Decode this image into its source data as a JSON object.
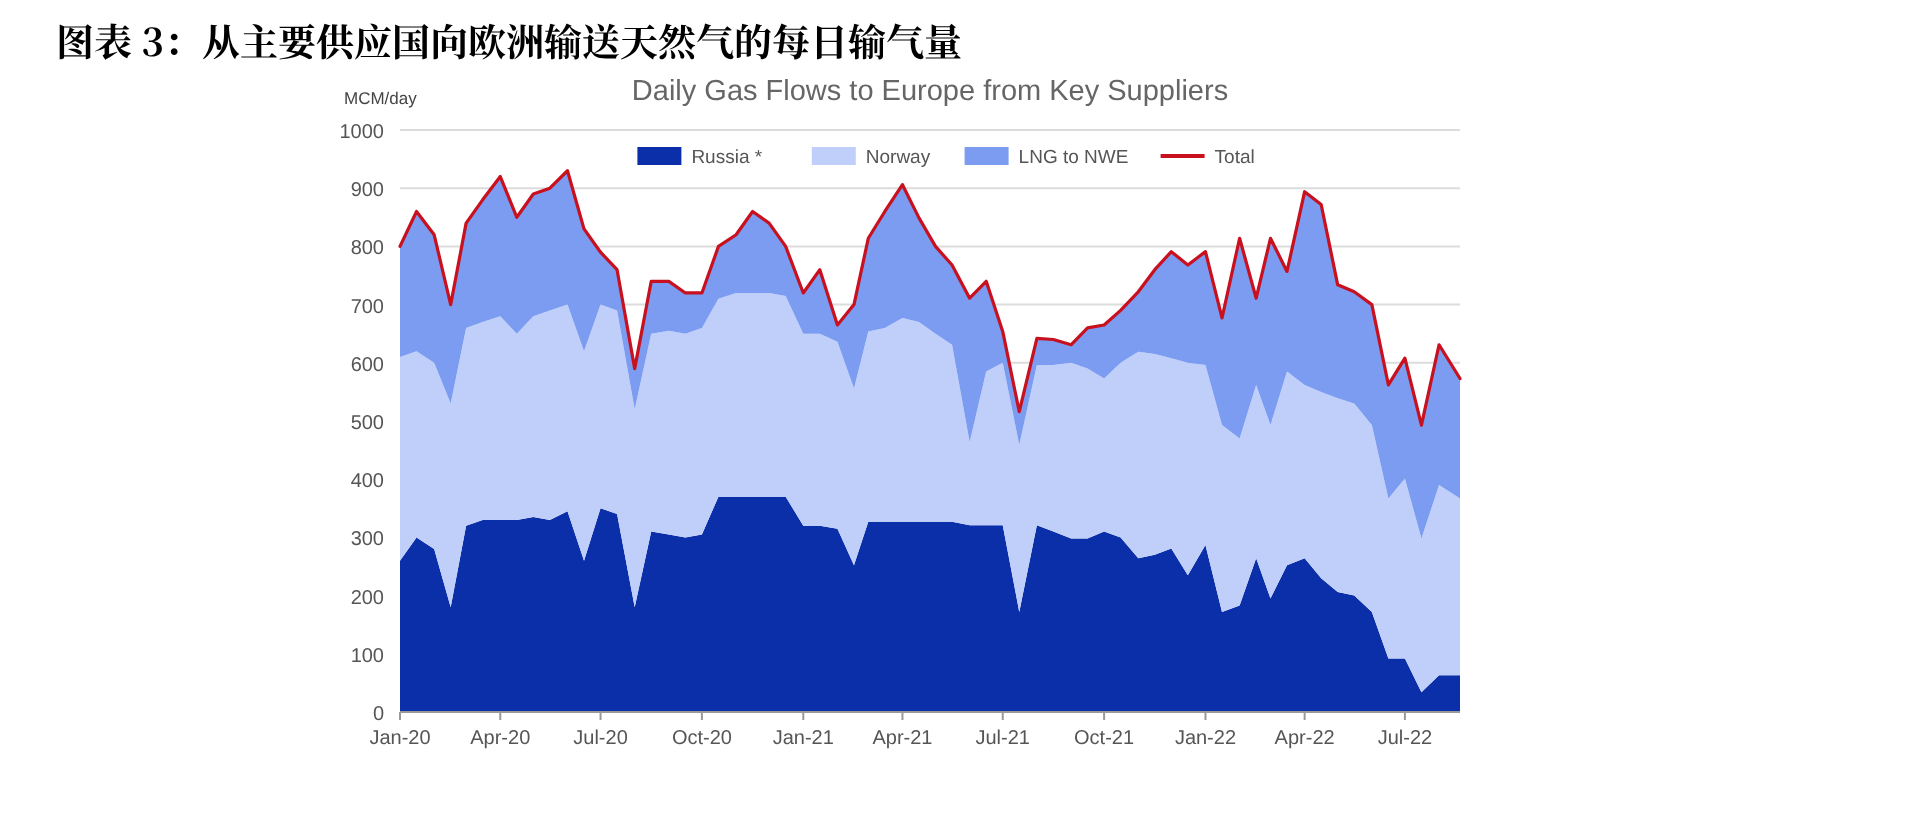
{
  "chart_data": {
    "type": "area",
    "stacked": true,
    "title": "图表 3：从主要供应国向欧洲输送天然气的每日输气量",
    "subtitle": "Daily Gas Flows to Europe from Key Suppliers",
    "ylabel": "MCM/day",
    "legend": "top",
    "grid": "y",
    "x": [
      "2020-01-01",
      "2020-01-16",
      "2020-02-01",
      "2020-02-16",
      "2020-03-01",
      "2020-03-16",
      "2020-04-01",
      "2020-04-16",
      "2020-05-01",
      "2020-05-16",
      "2020-06-01",
      "2020-06-16",
      "2020-07-01",
      "2020-07-16",
      "2020-08-01",
      "2020-08-16",
      "2020-09-01",
      "2020-09-16",
      "2020-10-01",
      "2020-10-16",
      "2020-11-01",
      "2020-11-16",
      "2020-12-01",
      "2020-12-16",
      "2021-01-01",
      "2021-01-16",
      "2021-02-01",
      "2021-02-16",
      "2021-03-01",
      "2021-03-16",
      "2021-04-01",
      "2021-04-16",
      "2021-05-01",
      "2021-05-16",
      "2021-06-01",
      "2021-06-16",
      "2021-07-01",
      "2021-07-16",
      "2021-08-01",
      "2021-08-16",
      "2021-09-01",
      "2021-09-16",
      "2021-10-01",
      "2021-10-16",
      "2021-11-01",
      "2021-11-16",
      "2021-12-01",
      "2021-12-16",
      "2022-01-01",
      "2022-01-16",
      "2022-02-01",
      "2022-02-16",
      "2022-03-01",
      "2022-03-16",
      "2022-04-01",
      "2022-04-16",
      "2022-05-01",
      "2022-05-16",
      "2022-06-01",
      "2022-06-16",
      "2022-07-01",
      "2022-07-16",
      "2022-08-01",
      "2022-08-20"
    ],
    "xlim": [
      "2020-01-01",
      "2022-08-20"
    ],
    "xticks": [
      {
        "value": "2020-01-01",
        "label": "Jan-20"
      },
      {
        "value": "2020-04-01",
        "label": "Apr-20"
      },
      {
        "value": "2020-07-01",
        "label": "Jul-20"
      },
      {
        "value": "2020-10-01",
        "label": "Oct-20"
      },
      {
        "value": "2021-01-01",
        "label": "Jan-21"
      },
      {
        "value": "2021-04-01",
        "label": "Apr-21"
      },
      {
        "value": "2021-07-01",
        "label": "Jul-21"
      },
      {
        "value": "2021-10-01",
        "label": "Oct-21"
      },
      {
        "value": "2022-01-01",
        "label": "Jan-22"
      },
      {
        "value": "2022-04-01",
        "label": "Apr-22"
      },
      {
        "value": "2022-07-01",
        "label": "Jul-22"
      }
    ],
    "ylim": [
      0,
      1000
    ],
    "yticks": [
      0,
      100,
      200,
      300,
      400,
      500,
      600,
      700,
      800,
      900,
      1000
    ],
    "series": [
      {
        "name": "Russia *",
        "color": "#0b2fa8",
        "values": [
          260,
          300,
          280,
          180,
          320,
          330,
          330,
          330,
          335,
          330,
          345,
          260,
          350,
          340,
          180,
          310,
          305,
          300,
          305,
          370,
          370,
          370,
          370,
          370,
          320,
          320,
          315,
          252,
          327,
          327,
          327,
          327,
          327,
          327,
          321,
          321,
          321,
          172,
          321,
          310,
          298,
          298,
          310,
          300,
          264,
          270,
          281,
          235,
          287,
          172,
          183,
          264,
          195,
          252,
          264,
          230,
          206,
          200,
          172,
          92,
          92,
          34,
          63,
          63
        ]
      },
      {
        "name": "Norway",
        "color": "#bfcffa",
        "values": [
          350,
          320,
          320,
          350,
          340,
          340,
          350,
          320,
          345,
          360,
          355,
          360,
          350,
          350,
          340,
          340,
          350,
          350,
          355,
          340,
          350,
          350,
          350,
          345,
          330,
          330,
          321,
          304,
          327,
          333,
          350,
          343,
          323,
          304,
          143,
          264,
          279,
          287,
          275,
          286,
          302,
          292,
          263,
          300,
          355,
          345,
          327,
          365,
          309,
          321,
          287,
          298,
          298,
          333,
          298,
          320,
          333,
          330,
          321,
          275,
          309,
          264,
          327,
          304
        ]
      },
      {
        "name": "LNG to NWE",
        "color": "#7b9cf0",
        "values": [
          190,
          240,
          220,
          170,
          180,
          210,
          240,
          200,
          210,
          210,
          230,
          210,
          90,
          70,
          70,
          90,
          85,
          70,
          60,
          90,
          100,
          140,
          120,
          85,
          70,
          110,
          29,
          144,
          160,
          200,
          229,
          179,
          150,
          137,
          247,
          155,
          54,
          57,
          46,
          44,
          31,
          70,
          92,
          90,
          103,
          145,
          183,
          168,
          195,
          184,
          344,
          149,
          321,
          172,
          332,
          322,
          195,
          192,
          207,
          195,
          207,
          195,
          241,
          206
        ]
      },
      {
        "name": "Total",
        "type": "line",
        "color": "#c8101e",
        "values": [
          800,
          860,
          820,
          700,
          840,
          880,
          920,
          850,
          890,
          900,
          930,
          830,
          790,
          760,
          590,
          740,
          740,
          720,
          720,
          800,
          820,
          860,
          840,
          800,
          720,
          760,
          665,
          700,
          814,
          860,
          906,
          849,
          800,
          768,
          711,
          740,
          654,
          516,
          642,
          640,
          631,
          660,
          665,
          690,
          722,
          760,
          791,
          768,
          791,
          677,
          814,
          711,
          814,
          757,
          894,
          872,
          734,
          722,
          700,
          562,
          608,
          493,
          631,
          573
        ]
      }
    ]
  }
}
